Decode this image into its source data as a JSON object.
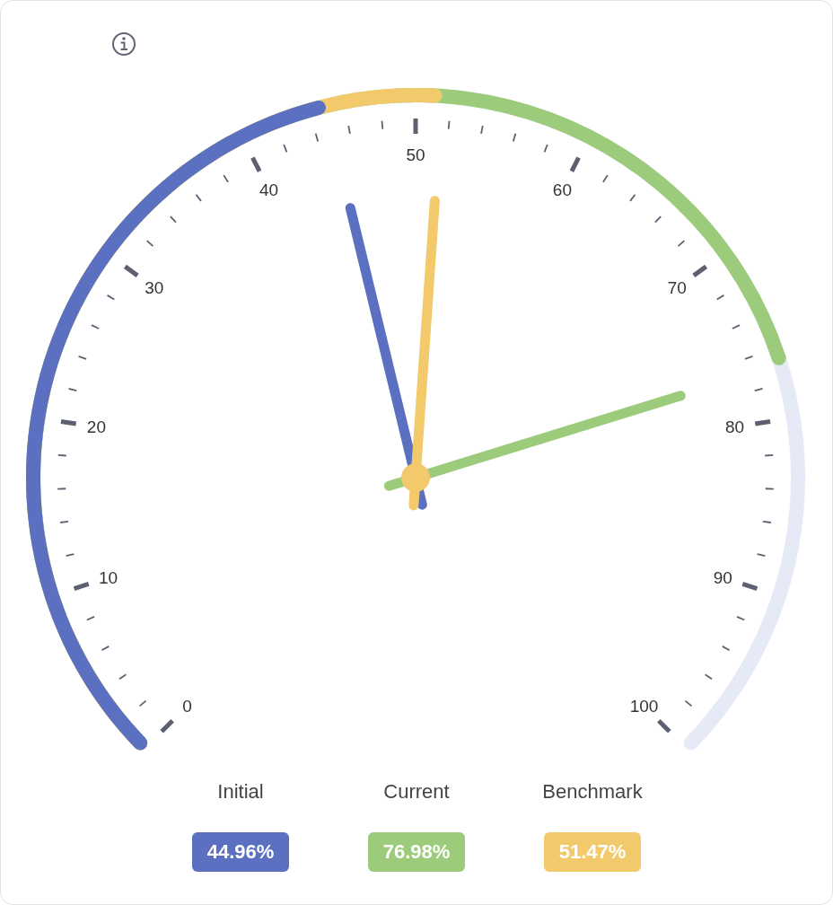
{
  "chart_data": {
    "type": "other",
    "annotations": [
      "0",
      "10",
      "20",
      "30",
      "40",
      "50",
      "60",
      "70",
      "80",
      "90",
      "100"
    ],
    "series": [
      {
        "name": "Initial",
        "color": "#5b70c0",
        "values": [
          44.96
        ],
        "value_labels": [
          "44.96%"
        ]
      },
      {
        "name": "Current",
        "color": "#9dcb7c",
        "values": [
          76.98
        ],
        "value_labels": [
          "76.98%"
        ]
      },
      {
        "name": "Benchmark",
        "color": "#f2c96b",
        "values": [
          51.47
        ],
        "value_labels": [
          "51.47%"
        ]
      }
    ]
  }
}
